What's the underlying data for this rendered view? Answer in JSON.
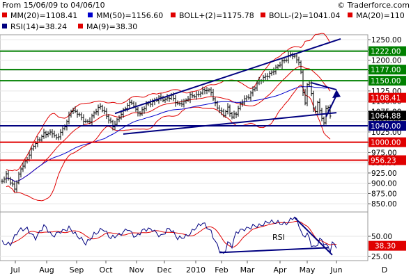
{
  "header": {
    "date_range": "From 15/06/09 to 04/06/10",
    "copyright": "© Traderforce.com"
  },
  "legend": [
    {
      "label": "MM(20)=1108.41",
      "color": "#e00000"
    },
    {
      "label": "MM(50)=1156.60",
      "color": "#0000cc"
    },
    {
      "label": "BOLL+(2)=1175.78",
      "color": "#e00000"
    },
    {
      "label": "BOLL-(2)=1041.04",
      "color": "#e00000"
    },
    {
      "label": "MA(20)=110",
      "color": "#e00000"
    },
    {
      "label": "RSI(14)=38.24",
      "color": "#000080"
    },
    {
      "label": "MA(9)=38.30",
      "color": "#e00000"
    }
  ],
  "chart_data": [
    {
      "type": "bar",
      "subtype": "ohlc",
      "x_labels": [
        "Jul",
        "Aug",
        "Sep",
        "Oct",
        "Nov",
        "Dec",
        "2010",
        "Feb",
        "Mar",
        "Apr",
        "May",
        "Jun",
        "D"
      ],
      "y_ticks": [
        850,
        875,
        900,
        925,
        950,
        975,
        1000,
        1025,
        1050,
        1075,
        1100,
        1125,
        1150,
        1175,
        1200,
        1225,
        1250
      ],
      "y_tick_labels": [
        "850.00",
        "875.00",
        "900.00",
        "925.00",
        "950.00",
        "975.00",
        "1000.00",
        "1025.00",
        "1050.00",
        "1075.00",
        "1100.00",
        "1125.00",
        "1150.00",
        "1175.00",
        "1200.00",
        "1225.00",
        "1250.00"
      ],
      "ylim": [
        830,
        1262
      ],
      "close_anchors": [
        [
          0,
          905
        ],
        [
          2,
          918
        ],
        [
          4,
          900
        ],
        [
          6,
          885
        ],
        [
          9,
          938
        ],
        [
          12,
          962
        ],
        [
          15,
          992
        ],
        [
          18,
          1005
        ],
        [
          20,
          1018
        ],
        [
          24,
          1025
        ],
        [
          26,
          1012
        ],
        [
          29,
          1032
        ],
        [
          31,
          1048
        ],
        [
          33,
          1075
        ],
        [
          36,
          1070
        ],
        [
          38,
          1060
        ],
        [
          40,
          1052
        ],
        [
          42,
          1055
        ],
        [
          44,
          1072
        ],
        [
          47,
          1085
        ],
        [
          50,
          1062
        ],
        [
          53,
          1040
        ],
        [
          55,
          1055
        ],
        [
          57,
          1072
        ],
        [
          60,
          1090
        ],
        [
          62,
          1095
        ],
        [
          64,
          1075
        ],
        [
          66,
          1068
        ],
        [
          69,
          1095
        ],
        [
          72,
          1100
        ],
        [
          75,
          1108
        ],
        [
          78,
          1100
        ],
        [
          81,
          1112
        ],
        [
          84,
          1095
        ],
        [
          87,
          1100
        ],
        [
          90,
          1112
        ],
        [
          93,
          1110
        ],
        [
          96,
          1125
        ],
        [
          98,
          1130
        ],
        [
          100,
          1125
        ],
        [
          102,
          1095
        ],
        [
          104,
          1078
        ],
        [
          106,
          1065
        ],
        [
          108,
          1080
        ],
        [
          110,
          1060
        ],
        [
          112,
          1072
        ],
        [
          114,
          1095
        ],
        [
          116,
          1108
        ],
        [
          118,
          1112
        ],
        [
          120,
          1125
        ],
        [
          122,
          1140
        ],
        [
          124,
          1150
        ],
        [
          126,
          1160
        ],
        [
          128,
          1168
        ],
        [
          130,
          1178
        ],
        [
          132,
          1188
        ],
        [
          134,
          1195
        ],
        [
          136,
          1200
        ],
        [
          138,
          1212
        ],
        [
          140,
          1206
        ],
        [
          142,
          1198
        ],
        [
          143,
          1170
        ],
        [
          144,
          1125
        ],
        [
          145,
          1100
        ],
        [
          146,
          1140
        ],
        [
          147,
          1148
        ],
        [
          148,
          1120
        ],
        [
          149,
          1080
        ],
        [
          150,
          1075
        ],
        [
          151,
          1095
        ],
        [
          152,
          1072
        ],
        [
          153,
          1058
        ],
        [
          154,
          1045
        ],
        [
          155,
          1078
        ],
        [
          156,
          1088
        ],
        [
          157,
          1065
        ]
      ],
      "horizontal_levels": [
        {
          "value": 1222,
          "label": "1222.00",
          "color": "#008000"
        },
        {
          "value": 1177,
          "label": "1177.00",
          "color": "#008000"
        },
        {
          "value": 1150,
          "label": "1150.00",
          "color": "#008000"
        },
        {
          "value": 1108.41,
          "label": "1108.41",
          "color": "#e00000"
        },
        {
          "value": 1064.88,
          "label": "1064.88",
          "color": "#000000"
        },
        {
          "value": 1040,
          "label": "1040.00",
          "color": "#000080"
        },
        {
          "value": 1000,
          "label": "1000.00",
          "color": "#e00000"
        },
        {
          "value": 956.23,
          "label": "956.23",
          "color": "#e00000"
        }
      ],
      "trendlines": [
        {
          "from": [
            54,
            1070
          ],
          "to": [
            162,
            1252
          ],
          "color": "#000080"
        },
        {
          "from": [
            58,
            1020
          ],
          "to": [
            160,
            1072
          ],
          "color": "#000080"
        },
        {
          "from": [
            0,
            1040
          ],
          "to": [
            160,
            1040
          ],
          "color": "#000080"
        },
        {
          "from": [
            148,
            1145
          ],
          "to": [
            160,
            1128
          ],
          "color": "#000080"
        }
      ],
      "arrow": {
        "from": [
          155,
          1062
        ],
        "to": [
          160,
          1128
        ],
        "color": "#000080"
      }
    },
    {
      "type": "line",
      "label": "RSI",
      "y_ticks": [
        25,
        50
      ],
      "y_tick_labels": [
        "25.00",
        "50.00"
      ],
      "ylim": [
        20,
        80
      ],
      "current_label": "38.30",
      "rsi_anchors": [
        [
          0,
          45
        ],
        [
          4,
          40
        ],
        [
          8,
          55
        ],
        [
          12,
          60
        ],
        [
          16,
          50
        ],
        [
          20,
          62
        ],
        [
          24,
          48
        ],
        [
          28,
          58
        ],
        [
          32,
          62
        ],
        [
          36,
          48
        ],
        [
          40,
          40
        ],
        [
          44,
          55
        ],
        [
          48,
          60
        ],
        [
          52,
          45
        ],
        [
          56,
          52
        ],
        [
          60,
          62
        ],
        [
          64,
          48
        ],
        [
          68,
          56
        ],
        [
          72,
          60
        ],
        [
          76,
          52
        ],
        [
          80,
          58
        ],
        [
          84,
          46
        ],
        [
          88,
          52
        ],
        [
          92,
          60
        ],
        [
          96,
          64
        ],
        [
          100,
          55
        ],
        [
          104,
          36
        ],
        [
          106,
          29
        ],
        [
          108,
          42
        ],
        [
          110,
          36
        ],
        [
          112,
          52
        ],
        [
          116,
          60
        ],
        [
          120,
          65
        ],
        [
          124,
          62
        ],
        [
          128,
          66
        ],
        [
          132,
          69
        ],
        [
          136,
          67
        ],
        [
          140,
          72
        ],
        [
          142,
          62
        ],
        [
          144,
          48
        ],
        [
          146,
          55
        ],
        [
          148,
          42
        ],
        [
          150,
          38
        ],
        [
          152,
          47
        ],
        [
          154,
          40
        ],
        [
          156,
          34
        ],
        [
          157,
          30
        ],
        [
          158,
          40
        ],
        [
          160,
          38
        ]
      ],
      "trendlines": [
        {
          "from": [
            140,
            73
          ],
          "to": [
            158,
            27
          ],
          "color": "#000080"
        },
        {
          "from": [
            104,
            30
          ],
          "to": [
            156,
            36
          ],
          "color": "#000080"
        }
      ]
    }
  ]
}
